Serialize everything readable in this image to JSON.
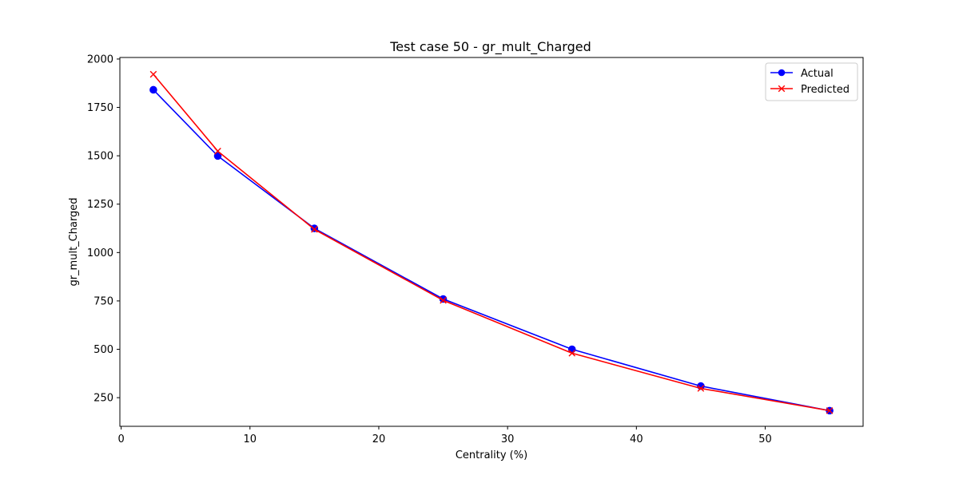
{
  "chart_data": {
    "type": "line",
    "title": "Test case 50 - gr_mult_Charged",
    "xlabel": "Centrality (%)",
    "ylabel": "gr_mult_Charged",
    "xlim": [
      -0.1,
      57.6
    ],
    "ylim": [
      102,
      2008
    ],
    "xticks": [
      0,
      10,
      20,
      30,
      40,
      50
    ],
    "yticks": [
      250,
      500,
      750,
      1000,
      1250,
      1500,
      1750,
      2000
    ],
    "grid": false,
    "legend_position": "top-right",
    "x": [
      2.5,
      7.5,
      15,
      25,
      35,
      45,
      55
    ],
    "series": [
      {
        "name": "Actual",
        "color": "#0000ff",
        "marker": "circle",
        "values": [
          1841,
          1499,
          1125,
          760,
          500,
          310,
          183
        ]
      },
      {
        "name": "Predicted",
        "color": "#ff0000",
        "marker": "x",
        "values": [
          1921,
          1524,
          1120,
          753,
          480,
          298,
          183
        ]
      }
    ]
  }
}
